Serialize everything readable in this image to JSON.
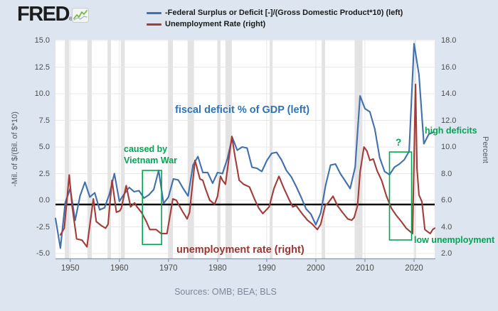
{
  "header": {
    "logo_text": "FRED",
    "logo_reg": "®",
    "legend": [
      {
        "label": "-Federal Surplus or Deficit [-]/(Gross Domestic Product*10) (left)",
        "color": "#4070ad"
      },
      {
        "label": "Unemployment Rate (right)",
        "color": "#a33c39"
      }
    ]
  },
  "footer": {
    "sources": "Sources: OMB; BEA; BLS"
  },
  "colors": {
    "background": "#dde6f0",
    "plot_background": "#ffffff",
    "gridline": "#e7e7e7",
    "recession_band": "#e3e3e3",
    "axis_line": "#8a95a5",
    "reference_line": "#000000",
    "deficit_line": "#4070ad",
    "unemployment_line": "#a33c39",
    "annotation_green": "#00a651",
    "annotation_blue": "#2e74b5",
    "annotation_red": "#9e342f",
    "tick_text": "#4d4d4d"
  },
  "chart_data": {
    "type": "line",
    "title": "",
    "x_axis": {
      "ticks": [
        1950,
        1960,
        1970,
        1980,
        1990,
        2000,
        2010,
        2020
      ],
      "range": [
        1947,
        2024.2
      ]
    },
    "left_axis": {
      "label": "-Mil. of $/(Bil. of $*10)",
      "ticks": [
        15.0,
        12.5,
        10.0,
        7.5,
        5.0,
        2.5,
        0.0,
        -2.5,
        -5.0
      ],
      "range": [
        -5.5,
        15.2
      ]
    },
    "right_axis": {
      "label": "Percent",
      "ticks": [
        18.0,
        16.0,
        14.0,
        12.0,
        10.0,
        8.0,
        6.0,
        4.0,
        2.0
      ],
      "range": [
        1.6,
        18.2
      ]
    },
    "grid": true,
    "series": [
      {
        "name": "-Federal Surplus or Deficit [-]/(Gross Domestic Product*10) (left)",
        "axis": "left",
        "color": "#4070ad",
        "x_start": 1947,
        "x_step": 1,
        "values": [
          -1.7,
          -4.5,
          -0.2,
          1.1,
          -1.9,
          0.4,
          1.7,
          0.3,
          0.7,
          -0.9,
          -0.7,
          0.6,
          2.5,
          -0.1,
          0.6,
          1.2,
          0.8,
          0.9,
          0.2,
          0.5,
          1.0,
          2.8,
          -0.3,
          0.3,
          2.0,
          1.9,
          1.1,
          0.4,
          3.3,
          4.1,
          2.6,
          2.6,
          1.6,
          2.6,
          2.5,
          3.9,
          5.9,
          4.7,
          5.0,
          4.9,
          3.1,
          3.0,
          2.7,
          3.7,
          4.4,
          4.5,
          3.8,
          2.8,
          2.2,
          1.3,
          0.3,
          -0.8,
          -1.3,
          -2.3,
          -1.2,
          1.4,
          3.3,
          3.4,
          2.5,
          1.8,
          1.1,
          3.1,
          9.8,
          8.6,
          8.3,
          6.7,
          4.0,
          2.7,
          2.4,
          3.1,
          3.4,
          3.8,
          4.6,
          14.7,
          11.8,
          5.3,
          6.2,
          6.4
        ]
      },
      {
        "name": "Unemployment Rate (right)",
        "axis": "right",
        "color": "#a33c39",
        "x": [
          1948.0,
          1948.8,
          1949.8,
          1950.4,
          1951.3,
          1952.4,
          1953.4,
          1954.7,
          1955.3,
          1956.3,
          1957.2,
          1957.7,
          1958.5,
          1959.4,
          1960.1,
          1960.4,
          1961.4,
          1962.3,
          1963.1,
          1963.6,
          1964.5,
          1965.5,
          1966.2,
          1967.5,
          1968.5,
          1969.7,
          1970.9,
          1971.6,
          1972.8,
          1973.8,
          1974.3,
          1975.4,
          1976.4,
          1977.0,
          1977.5,
          1978.4,
          1979.4,
          1980.0,
          1980.6,
          1981.0,
          1981.6,
          1982.9,
          1983.5,
          1984.4,
          1985.3,
          1986.5,
          1987.5,
          1988.4,
          1989.2,
          1990.5,
          1991.5,
          1992.5,
          1993.5,
          1994.5,
          1995.3,
          1996.0,
          1996.6,
          1997.4,
          1998.3,
          1999.3,
          2000.3,
          2001.0,
          2001.9,
          2002.5,
          2003.5,
          2004.4,
          2005.4,
          2006.5,
          2007.3,
          2007.8,
          2008.5,
          2009.0,
          2009.8,
          2010.4,
          2011.0,
          2011.7,
          2012.5,
          2013.4,
          2014.4,
          2015.4,
          2016.3,
          2017.4,
          2018.4,
          2019.7,
          2020.3,
          2020.6,
          2021.0,
          2021.6,
          2022.2,
          2022.9,
          2023.3,
          2023.8,
          2024.2
        ],
        "values": [
          3.4,
          3.9,
          7.9,
          5.5,
          3.1,
          3.0,
          2.5,
          6.1,
          4.4,
          4.1,
          3.9,
          4.2,
          7.5,
          5.1,
          5.2,
          5.4,
          7.1,
          5.5,
          5.8,
          5.5,
          5.1,
          4.4,
          3.8,
          3.8,
          3.5,
          3.5,
          6.1,
          6.0,
          5.2,
          4.6,
          5.1,
          9.0,
          7.6,
          7.5,
          6.9,
          6.0,
          5.7,
          6.3,
          7.8,
          7.5,
          7.2,
          10.8,
          9.4,
          7.5,
          7.2,
          7.0,
          6.1,
          5.4,
          5.0,
          5.5,
          6.9,
          7.8,
          6.9,
          6.1,
          5.5,
          5.6,
          5.3,
          4.9,
          4.5,
          4.2,
          3.8,
          4.2,
          5.6,
          5.8,
          6.3,
          5.6,
          5.1,
          4.6,
          4.5,
          4.7,
          5.6,
          8.1,
          10.0,
          9.7,
          9.0,
          9.1,
          8.2,
          7.5,
          6.3,
          5.4,
          4.9,
          4.4,
          3.9,
          3.5,
          14.7,
          8.4,
          6.4,
          5.9,
          3.8,
          3.6,
          3.5,
          3.8,
          3.9
        ]
      }
    ],
    "reference_line": {
      "axis": "left",
      "value": -0.4,
      "color": "#000000"
    },
    "recession_bands": [
      [
        1948.9,
        1949.8
      ],
      [
        1953.5,
        1954.4
      ],
      [
        1957.6,
        1958.3
      ],
      [
        1960.3,
        1961.1
      ],
      [
        1969.9,
        1970.9
      ],
      [
        1973.9,
        1975.2
      ],
      [
        1980.0,
        1980.6
      ],
      [
        1981.6,
        1982.9
      ],
      [
        1990.6,
        1991.2
      ],
      [
        2001.2,
        2001.9
      ],
      [
        2007.9,
        2009.5
      ],
      [
        2020.1,
        2020.4
      ]
    ],
    "annotations": {
      "color": "#00a651",
      "deficit_text": "fiscal deficit % of GDP (left)",
      "unemployment_text": "unemployment rate (right)",
      "vietnam_text": "caused by\nVietnam War",
      "question_text": "?",
      "high_deficits_text": "high deficits",
      "low_unemployment_text": "low unemployment",
      "boxes": [
        {
          "years": [
            1964.7,
            1968.6
          ],
          "left_values": [
            2.8,
            -4.15
          ]
        },
        {
          "years": [
            2015.0,
            2019.5
          ],
          "left_values": [
            4.53,
            -3.73
          ]
        }
      ]
    },
    "legend_position": "top-left"
  }
}
